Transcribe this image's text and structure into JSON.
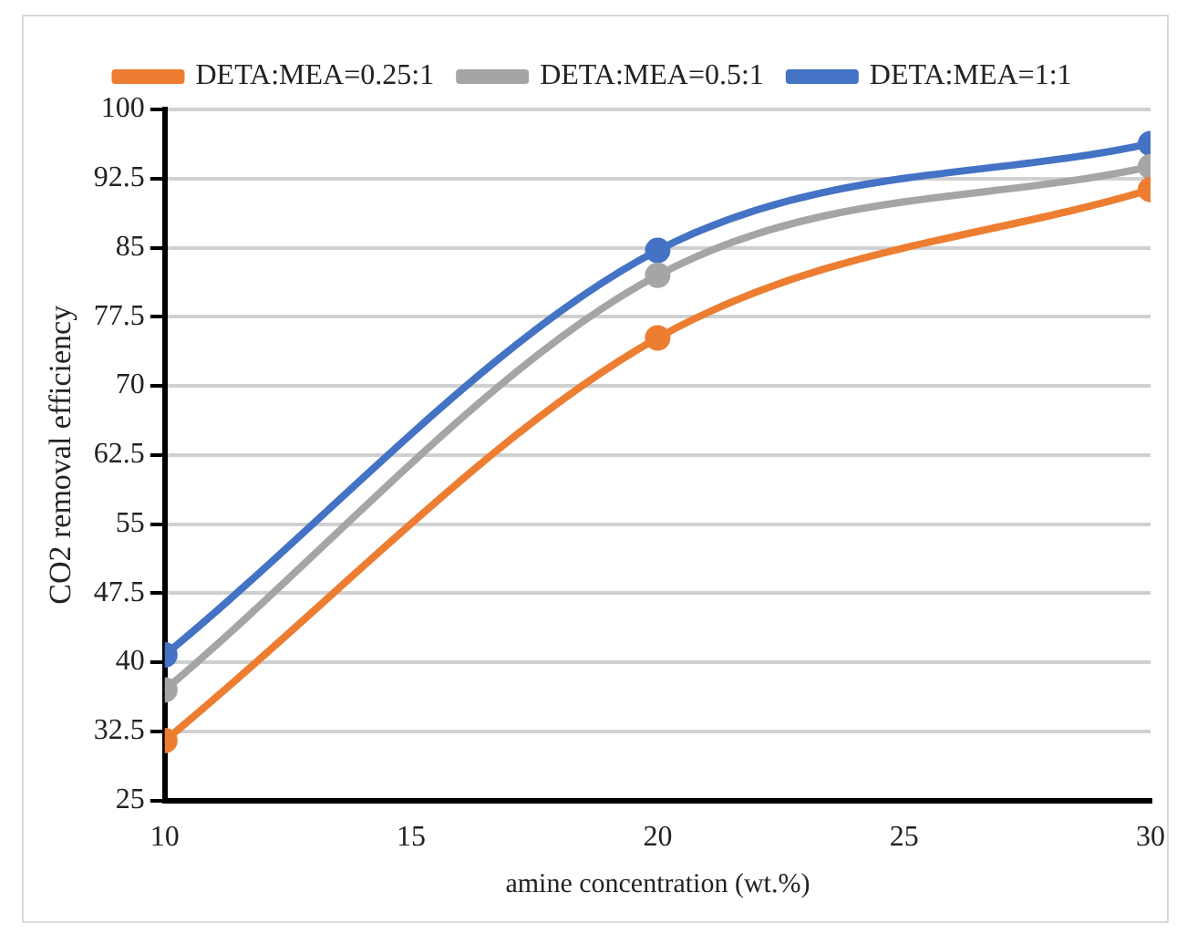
{
  "chart_data": {
    "type": "line",
    "xlabel": "amine concentration (wt.%)",
    "ylabel": "CO2 removal efficiency",
    "x": [
      10,
      20,
      30
    ],
    "series": [
      {
        "name": "DETA:MEA=0.25:1",
        "color": "#ed7d31",
        "values": [
          31.5,
          75.2,
          91.3
        ]
      },
      {
        "name": "DETA:MEA=0.5:1",
        "color": "#a5a5a5",
        "values": [
          37,
          82,
          93.8
        ]
      },
      {
        "name": "DETA:MEA=1:1",
        "color": "#4472c4",
        "values": [
          40.8,
          84.7,
          96.3
        ]
      }
    ],
    "xlim": [
      10,
      30
    ],
    "xticks": [
      10,
      15,
      20,
      25,
      30
    ],
    "ylim": [
      25,
      100
    ],
    "yticks": [
      25,
      32.5,
      40,
      47.5,
      55,
      62.5,
      70,
      77.5,
      85,
      92.5,
      100
    ],
    "grid": "y",
    "legend": "top",
    "marker": "circle",
    "line_style": "solid"
  }
}
